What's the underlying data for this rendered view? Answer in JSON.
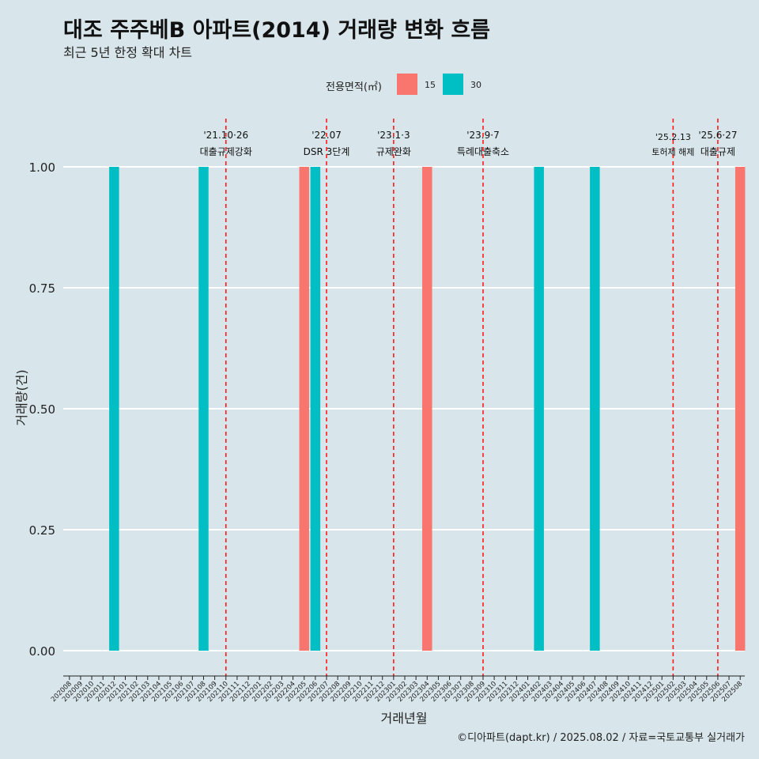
{
  "header": {
    "title": "대조 주주베B 아파트(2014) 거래량 변화 흐름",
    "subtitle": "최근 5년 한정 확대 차트"
  },
  "legend": {
    "title": "전용면적(㎡)",
    "items": [
      {
        "label": "15",
        "color": "#f8766d"
      },
      {
        "label": "30",
        "color": "#00bfc4"
      }
    ]
  },
  "footer": {
    "caption": "©디아파트(dapt.kr) / 2025.08.02 / 자료=국토교통부 실거래가"
  },
  "chart_data": {
    "type": "bar",
    "xlabel": "거래년월",
    "ylabel": "거래량(건)",
    "ylim": [
      0,
      1
    ],
    "yticks": [
      "0.00",
      "0.25",
      "0.50",
      "0.75",
      "1.00"
    ],
    "grid": true,
    "legend_position": "top",
    "categories": [
      "202008",
      "202009",
      "202010",
      "202011",
      "202012",
      "202101",
      "202102",
      "202103",
      "202104",
      "202105",
      "202106",
      "202107",
      "202108",
      "202109",
      "202110",
      "202111",
      "202112",
      "202201",
      "202202",
      "202203",
      "202204",
      "202205",
      "202206",
      "202207",
      "202208",
      "202209",
      "202210",
      "202211",
      "202212",
      "202301",
      "202302",
      "202303",
      "202304",
      "202305",
      "202306",
      "202307",
      "202308",
      "202309",
      "202310",
      "202311",
      "202312",
      "202401",
      "202402",
      "202403",
      "202404",
      "202405",
      "202406",
      "202407",
      "202408",
      "202409",
      "202410",
      "202411",
      "202412",
      "202501",
      "202502",
      "202503",
      "202504",
      "202505",
      "202506",
      "202507",
      "202508"
    ],
    "series": [
      {
        "name": "15",
        "color": "#f8766d",
        "points": [
          {
            "x": "202205",
            "y": 1
          },
          {
            "x": "202304",
            "y": 1
          },
          {
            "x": "202508",
            "y": 1
          }
        ]
      },
      {
        "name": "30",
        "color": "#00bfc4",
        "points": [
          {
            "x": "202012",
            "y": 1
          },
          {
            "x": "202108",
            "y": 1
          },
          {
            "x": "202206",
            "y": 1
          },
          {
            "x": "202402",
            "y": 1
          },
          {
            "x": "202407",
            "y": 1
          }
        ]
      }
    ],
    "annotations": [
      {
        "x": "202110",
        "line1": "'21.10·26",
        "line2": "대출규제강화"
      },
      {
        "x": "202207",
        "line1": "'22.07",
        "line2": "DSR 3단계"
      },
      {
        "x": "202301",
        "line1": "'23.1·3",
        "line2": "규제완화"
      },
      {
        "x": "202309",
        "line1": "'23.9·7",
        "line2": "특례대출축소"
      },
      {
        "x": "202502",
        "line1": "'25.2.13",
        "line2": "토허제 해제"
      },
      {
        "x": "202506",
        "line1": "'25.6·27",
        "line2": "대출규제"
      }
    ]
  }
}
